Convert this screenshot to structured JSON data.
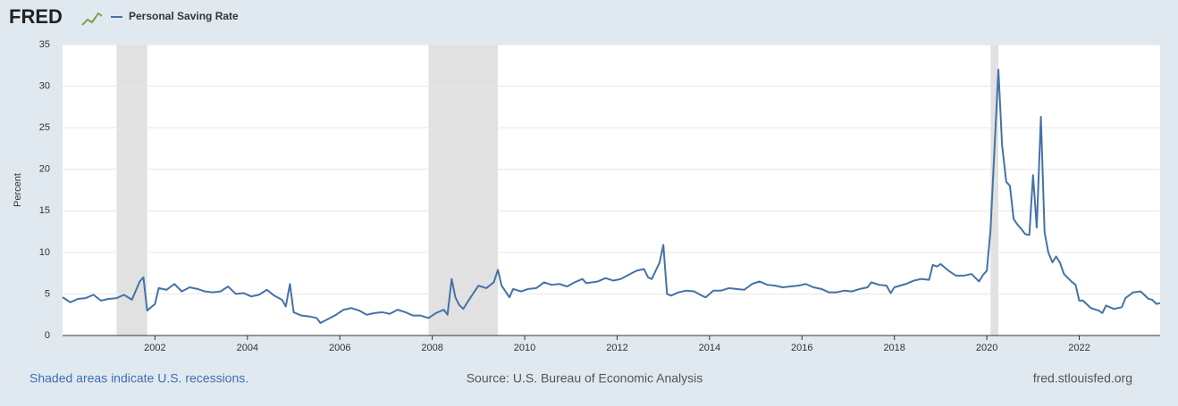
{
  "logo": "FRED",
  "chart_data": {
    "type": "line",
    "ylabel": "Percent",
    "x": [
      2000,
      2000.17,
      2000.33,
      2000.5,
      2000.67,
      2000.83,
      2001,
      2001.17,
      2001.33,
      2001.5,
      2001.67,
      2001.75,
      2001.83,
      2002,
      2002.08,
      2002.25,
      2002.42,
      2002.58,
      2002.75,
      2002.92,
      2003.08,
      2003.25,
      2003.42,
      2003.58,
      2003.75,
      2003.92,
      2004.08,
      2004.25,
      2004.42,
      2004.58,
      2004.75,
      2004.83,
      2004.92,
      2005,
      2005.17,
      2005.33,
      2005.5,
      2005.58,
      2005.75,
      2005.92,
      2006.08,
      2006.25,
      2006.42,
      2006.58,
      2006.75,
      2006.92,
      2007.08,
      2007.25,
      2007.42,
      2007.58,
      2007.75,
      2007.92,
      2008.08,
      2008.25,
      2008.33,
      2008.42,
      2008.5,
      2008.58,
      2008.67,
      2008.83,
      2009,
      2009.17,
      2009.33,
      2009.42,
      2009.5,
      2009.67,
      2009.75,
      2009.92,
      2010.08,
      2010.25,
      2010.42,
      2010.58,
      2010.75,
      2010.92,
      2011.08,
      2011.25,
      2011.33,
      2011.58,
      2011.75,
      2011.92,
      2012.08,
      2012.25,
      2012.42,
      2012.58,
      2012.67,
      2012.75,
      2012.92,
      2013,
      2013.08,
      2013.17,
      2013.33,
      2013.5,
      2013.67,
      2013.83,
      2013.92,
      2014.08,
      2014.25,
      2014.42,
      2014.58,
      2014.75,
      2014.92,
      2015.08,
      2015.25,
      2015.42,
      2015.58,
      2015.75,
      2015.92,
      2016.08,
      2016.25,
      2016.42,
      2016.58,
      2016.75,
      2016.92,
      2017.08,
      2017.25,
      2017.42,
      2017.5,
      2017.67,
      2017.83,
      2017.92,
      2018,
      2018.25,
      2018.42,
      2018.58,
      2018.75,
      2018.83,
      2018.92,
      2019,
      2019.17,
      2019.33,
      2019.5,
      2019.67,
      2019.83,
      2019.92,
      2020,
      2020.08,
      2020.25,
      2020.33,
      2020.42,
      2020.5,
      2020.58,
      2020.67,
      2020.75,
      2020.83,
      2020.92,
      2021,
      2021.08,
      2021.17,
      2021.25,
      2021.33,
      2021.42,
      2021.5,
      2021.58,
      2021.67,
      2021.83,
      2021.92,
      2022,
      2022.08,
      2022.25,
      2022.42,
      2022.5,
      2022.58,
      2022.75,
      2022.92,
      2023,
      2023.17,
      2023.33,
      2023.5,
      2023.58,
      2023.67,
      2023.75
    ],
    "series": [
      {
        "name": "Personal Saving Rate",
        "color": "#4572a7",
        "values": [
          4.6,
          4.0,
          4.4,
          4.5,
          4.9,
          4.2,
          4.4,
          4.5,
          4.9,
          4.3,
          6.5,
          7.0,
          3.0,
          3.8,
          5.7,
          5.5,
          6.2,
          5.3,
          5.8,
          5.6,
          5.3,
          5.2,
          5.3,
          5.9,
          5.0,
          5.1,
          4.7,
          4.9,
          5.5,
          4.8,
          4.3,
          3.5,
          6.2,
          2.8,
          2.4,
          2.3,
          2.1,
          1.5,
          2.0,
          2.5,
          3.1,
          3.3,
          3.0,
          2.5,
          2.7,
          2.8,
          2.6,
          3.1,
          2.8,
          2.4,
          2.4,
          2.1,
          2.7,
          3.1,
          2.5,
          6.8,
          4.6,
          3.7,
          3.2,
          4.6,
          6.0,
          5.7,
          6.4,
          7.9,
          6.0,
          4.6,
          5.6,
          5.3,
          5.6,
          5.7,
          6.4,
          6.1,
          6.2,
          5.9,
          6.4,
          6.8,
          6.3,
          6.5,
          6.9,
          6.6,
          6.8,
          7.3,
          7.8,
          8.0,
          7.0,
          6.8,
          8.8,
          10.9,
          5.0,
          4.8,
          5.2,
          5.4,
          5.3,
          4.8,
          4.6,
          5.4,
          5.4,
          5.7,
          5.6,
          5.5,
          6.2,
          6.5,
          6.1,
          6.0,
          5.8,
          5.9,
          6.0,
          6.2,
          5.8,
          5.6,
          5.2,
          5.2,
          5.4,
          5.3,
          5.6,
          5.8,
          6.4,
          6.1,
          6.0,
          5.1,
          5.8,
          6.2,
          6.6,
          6.8,
          6.7,
          8.5,
          8.3,
          8.6,
          7.8,
          7.2,
          7.2,
          7.4,
          6.5,
          7.3,
          7.8,
          12.7,
          32.0,
          22.9,
          18.5,
          18.0,
          14.0,
          13.3,
          12.8,
          12.2,
          12.1,
          19.3,
          13.0,
          26.3,
          12.4,
          10.0,
          8.8,
          9.5,
          8.8,
          7.4,
          6.5,
          6.1,
          4.2,
          4.2,
          3.3,
          3.0,
          2.7,
          3.6,
          3.2,
          3.4,
          4.5,
          5.2,
          5.3,
          4.4,
          4.3,
          3.8,
          3.9
        ]
      }
    ],
    "xlim": [
      2000,
      2023.75
    ],
    "xticks": [
      2002,
      2004,
      2006,
      2008,
      2010,
      2012,
      2014,
      2016,
      2018,
      2020,
      2022
    ],
    "ylim": [
      0,
      35
    ],
    "yticks": [
      0,
      5,
      10,
      15,
      20,
      25,
      30,
      35
    ],
    "grid": true,
    "recessions": [
      [
        2001.17,
        2001.83
      ],
      [
        2007.92,
        2009.42
      ],
      [
        2020.08,
        2020.25
      ]
    ],
    "recession_color": "#e1e1e1"
  },
  "footer": {
    "note": "Shaded areas indicate U.S. recessions.",
    "source": "Source: U.S. Bureau of Economic Analysis",
    "url": "fred.stlouisfed.org"
  }
}
